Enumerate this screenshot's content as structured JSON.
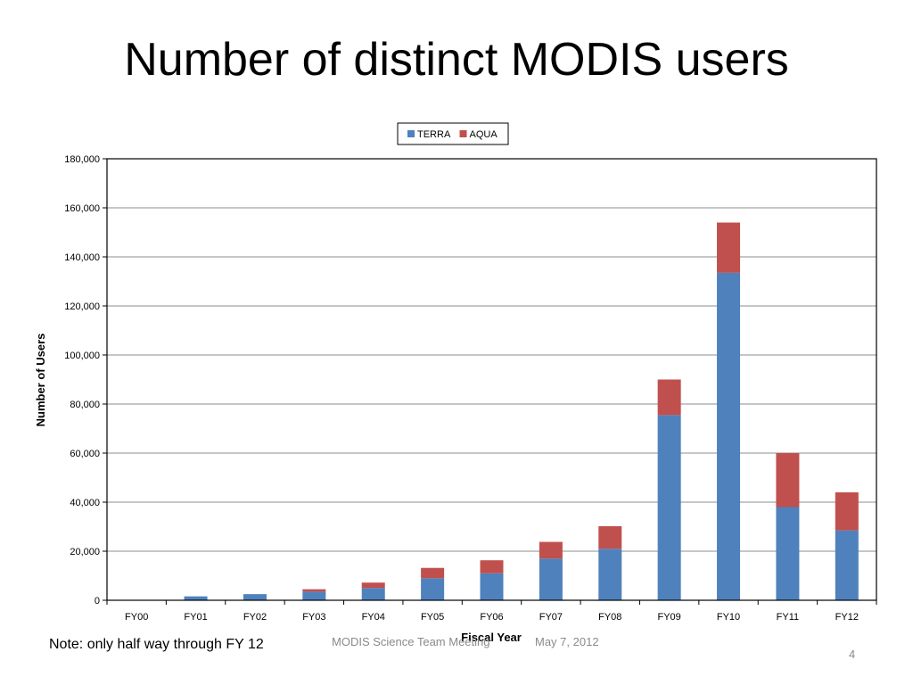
{
  "slide": {
    "title": "Number of distinct MODIS users",
    "note": "Note:  only half way through FY 12",
    "footer_event": "MODIS Science Team Meeting",
    "footer_date": "May 7, 2012",
    "page_number": "4"
  },
  "chart_data": {
    "type": "bar",
    "stacked": true,
    "title": "",
    "xlabel": "Fiscal Year",
    "ylabel": "Number of Users",
    "categories": [
      "FY00",
      "FY01",
      "FY02",
      "FY03",
      "FY04",
      "FY05",
      "FY06",
      "FY07",
      "FY08",
      "FY09",
      "FY10",
      "FY11",
      "FY12"
    ],
    "series": [
      {
        "name": "TERRA",
        "color": "#4f81bd",
        "values": [
          0,
          1600,
          2500,
          3500,
          5000,
          9000,
          11000,
          17000,
          21000,
          75500,
          133500,
          38000,
          28500
        ]
      },
      {
        "name": "AQUA",
        "color": "#c0504d",
        "values": [
          0,
          0,
          0,
          1000,
          2200,
          4200,
          5300,
          6800,
          9200,
          14500,
          20500,
          22000,
          15500
        ]
      }
    ],
    "ylim": [
      0,
      180000
    ],
    "yticks": [
      "0",
      "20,000",
      "40,000",
      "60,000",
      "80,000",
      "100,000",
      "120,000",
      "140,000",
      "160,000",
      "180,000"
    ],
    "ytick_values": [
      0,
      20000,
      40000,
      60000,
      80000,
      100000,
      120000,
      140000,
      160000,
      180000
    ],
    "grid": true,
    "legend_position": "top"
  }
}
